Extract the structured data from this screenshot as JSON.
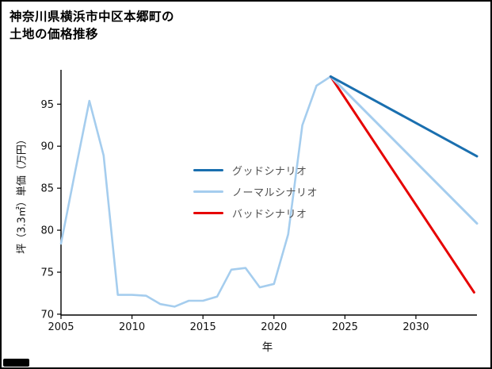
{
  "header": {
    "title_line1": "神奈川県横浜市中区本郷町の",
    "title_line2": "土地の価格推移"
  },
  "chart_data": {
    "type": "line",
    "title": "神奈川県横浜市中区本郷町の土地の価格推移",
    "xlabel": "年",
    "ylabel": "坪（3.3㎡）単価（万円）",
    "xlim": [
      2005,
      2034.3
    ],
    "ylim": [
      69.9,
      98.9
    ],
    "xticks": [
      2005,
      2010,
      2015,
      2020,
      2025,
      2030
    ],
    "yticks": [
      70,
      75,
      80,
      85,
      90,
      95
    ],
    "grid": false,
    "legend_position": "center",
    "history": {
      "color": "#a5cdee",
      "x": [
        2005,
        2006,
        2007,
        2008,
        2009,
        2010,
        2011,
        2012,
        2013,
        2014,
        2015,
        2016,
        2017,
        2018,
        2019,
        2020,
        2021,
        2022,
        2023,
        2024
      ],
      "values": [
        78.4,
        87.0,
        95.4,
        88.9,
        72.3,
        72.3,
        72.2,
        71.2,
        70.9,
        71.6,
        71.6,
        72.1,
        75.3,
        75.5,
        73.2,
        73.6,
        79.5,
        92.5,
        97.2,
        98.3
      ]
    },
    "series": [
      {
        "name": "グッドシナリオ",
        "color": "#1a6faf",
        "x": [
          2024,
          2034.3
        ],
        "values": [
          98.3,
          88.8
        ]
      },
      {
        "name": "ノーマルシナリオ",
        "color": "#a5cdee",
        "x": [
          2024,
          2034.3
        ],
        "values": [
          98.3,
          80.8
        ]
      },
      {
        "name": "バッドシナリオ",
        "color": "#e60000",
        "x": [
          2024,
          2034.1
        ],
        "values": [
          98.3,
          72.6
        ]
      }
    ]
  }
}
